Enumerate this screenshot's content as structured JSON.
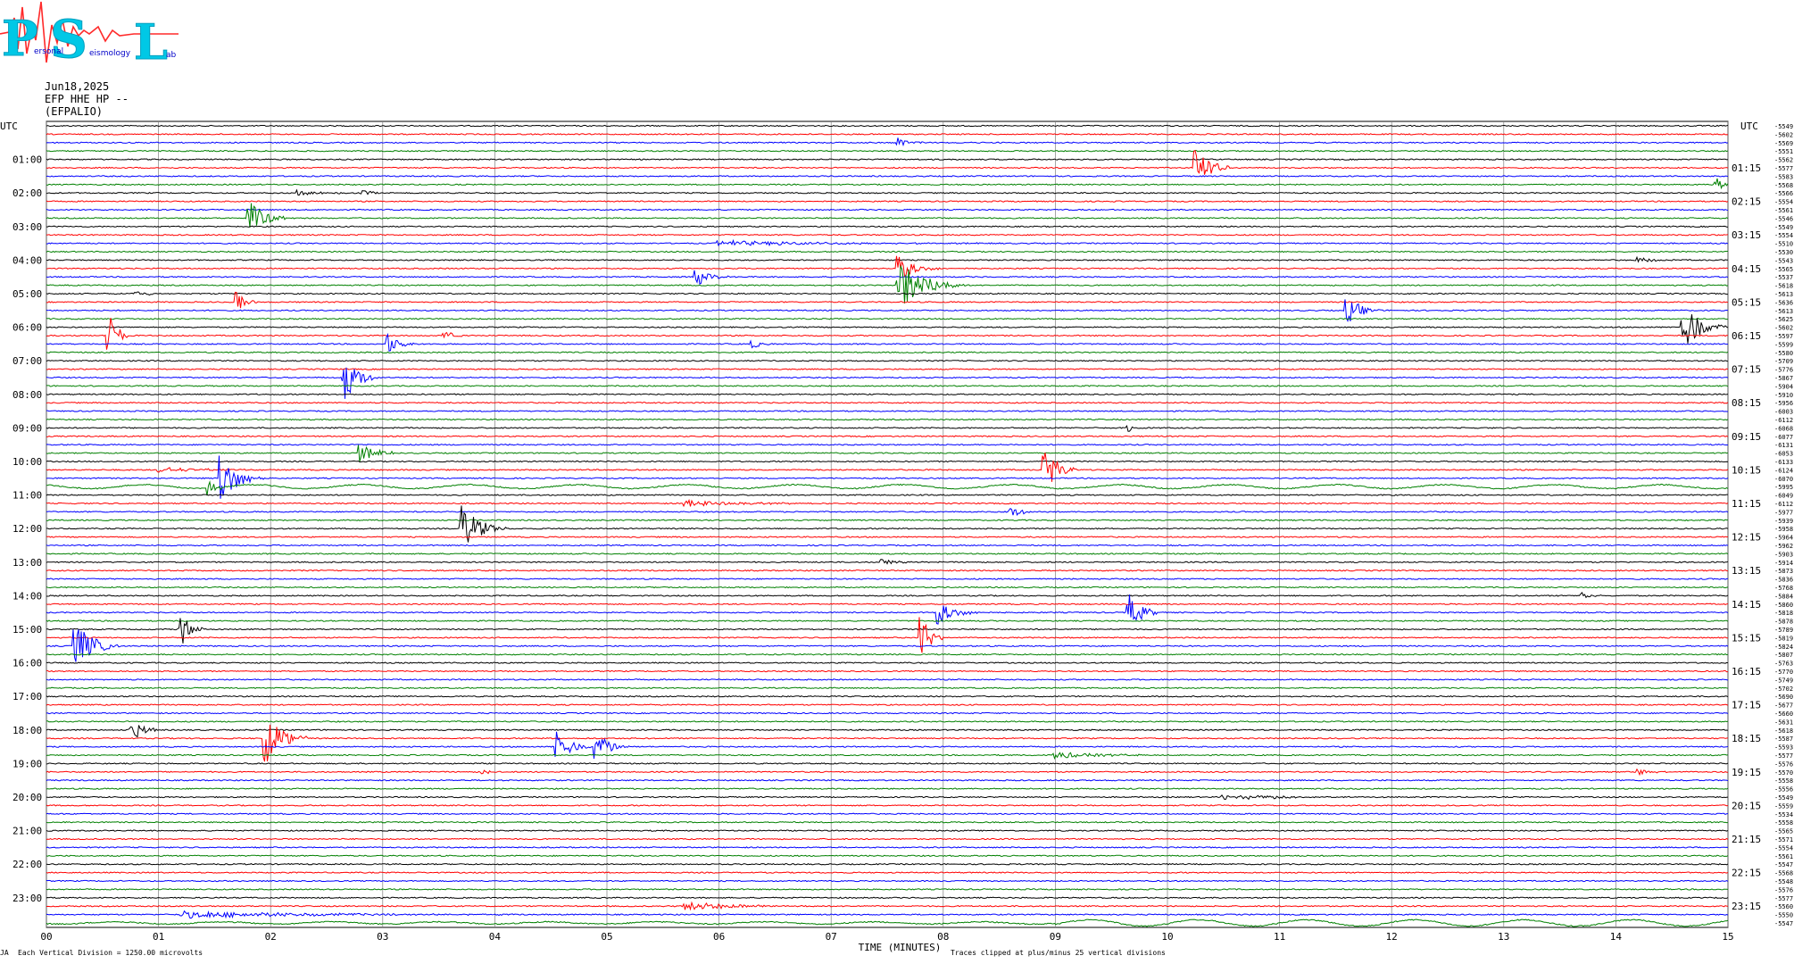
{
  "logo": {
    "letters": [
      "P",
      "S",
      "L"
    ],
    "words": [
      "ersonal",
      "eismology",
      "ab"
    ],
    "colors": {
      "letters": "#00c8e6",
      "trace": "#ff2a2a",
      "words": "#0000c8"
    }
  },
  "header": {
    "date": "Jun18,2025",
    "station": "EFP HHE HP --",
    "location": "(EFPALIO)"
  },
  "axes": {
    "left_label": "UTC",
    "right_label": "UTC",
    "xlabel": "TIME (MINUTES)",
    "x_ticks": [
      "00",
      "01",
      "02",
      "03",
      "04",
      "05",
      "06",
      "07",
      "08",
      "09",
      "10",
      "11",
      "12",
      "13",
      "14",
      "15"
    ],
    "xlim": [
      0,
      15
    ],
    "left_hour_labels": [
      "01:00",
      "02:00",
      "03:00",
      "04:00",
      "05:00",
      "06:00",
      "07:00",
      "08:00",
      "09:00",
      "10:00",
      "11:00",
      "12:00",
      "13:00",
      "14:00",
      "15:00",
      "16:00",
      "17:00",
      "18:00",
      "19:00",
      "20:00",
      "21:00",
      "22:00",
      "23:00"
    ],
    "right_hour_labels": [
      "01:15",
      "02:15",
      "03:15",
      "04:15",
      "05:15",
      "06:15",
      "07:15",
      "08:15",
      "09:15",
      "10:15",
      "11:15",
      "12:15",
      "13:15",
      "14:15",
      "15:15",
      "16:15",
      "17:15",
      "18:15",
      "19:15",
      "20:15",
      "21:15",
      "22:15",
      "23:15"
    ]
  },
  "footer": {
    "left_mark": "JA",
    "scale_note": "Each Vertical Division = 1250.00 microvolts",
    "clip_note": "Traces clipped at plus/minus 25 vertical divisions"
  },
  "colors": {
    "trace_cycle": [
      "#000000",
      "#ff0000",
      "#0000ff",
      "#008000"
    ],
    "grid": "#808080"
  },
  "chart_data": {
    "type": "line",
    "description_units": "helicorder, 96 traces of 15 minutes each",
    "trace_count": 96,
    "minutes_per_line": 15,
    "grid": true,
    "offsets": [
      -5549,
      -5602,
      -5569,
      -5551,
      -5562,
      -5577,
      -5583,
      -5568,
      -5566,
      -5554,
      -5561,
      -5546,
      -5549,
      -5554,
      -5510,
      -5530,
      -5543,
      -5565,
      -5537,
      -5618,
      -5613,
      -5636,
      -5613,
      -5625,
      -5602,
      -5597,
      -5599,
      -5580,
      -5709,
      -5776,
      -5867,
      -5904,
      -5910,
      -5956,
      -6003,
      -6112,
      -6068,
      -6077,
      -6131,
      -6053,
      -6133,
      -6124,
      -6070,
      -5995,
      -6049,
      -6112,
      -5977,
      -5939,
      -5958,
      -5964,
      -5962,
      -5903,
      -5914,
      -5873,
      -5836,
      -5768,
      -5884,
      -5860,
      -5818,
      -5878,
      -5789,
      -5819,
      -5824,
      -5807,
      -5763,
      -5770,
      -5749,
      -5702,
      -5690,
      -5677,
      -5660,
      -5631,
      -5618,
      -5587,
      -5593,
      -5577,
      -5576,
      -5570,
      -5558,
      -5556,
      -5549,
      -5559,
      -5534,
      -5558,
      -5565,
      -5571,
      -5554,
      -5561,
      -5547,
      -5568,
      -5548,
      -5576,
      -5577,
      -5560,
      -5550,
      -5547
    ],
    "events": [
      {
        "line": 2,
        "minute": 7.6,
        "amp": 6,
        "dur": 0.25
      },
      {
        "line": 5,
        "minute": 10.25,
        "amp": 30,
        "dur": 0.3
      },
      {
        "line": 7,
        "minute": 14.9,
        "amp": 8,
        "dur": 0.2
      },
      {
        "line": 8,
        "minute": 2.25,
        "amp": 3,
        "dur": 0.5
      },
      {
        "line": 8,
        "minute": 2.8,
        "amp": 3,
        "dur": 0.4
      },
      {
        "line": 11,
        "minute": 1.8,
        "amp": 22,
        "dur": 0.35
      },
      {
        "line": 14,
        "minute": 6.0,
        "amp": 3,
        "dur": 2.5
      },
      {
        "line": 17,
        "minute": 7.6,
        "amp": 14,
        "dur": 0.4
      },
      {
        "line": 16,
        "minute": 14.2,
        "amp": 4,
        "dur": 0.3
      },
      {
        "line": 18,
        "minute": 5.8,
        "amp": 10,
        "dur": 0.3
      },
      {
        "line": 19,
        "minute": 7.6,
        "amp": 30,
        "dur": 0.6
      },
      {
        "line": 20,
        "minute": 0.8,
        "amp": 3,
        "dur": 0.4
      },
      {
        "line": 21,
        "minute": 1.7,
        "amp": 12,
        "dur": 0.2
      },
      {
        "line": 22,
        "minute": 11.6,
        "amp": 18,
        "dur": 0.3
      },
      {
        "line": 24,
        "minute": 14.6,
        "amp": 28,
        "dur": 0.4
      },
      {
        "line": 25,
        "minute": 0.55,
        "amp": 30,
        "dur": 0.2
      },
      {
        "line": 25,
        "minute": 3.55,
        "amp": 5,
        "dur": 0.3
      },
      {
        "line": 26,
        "minute": 6.3,
        "amp": 5,
        "dur": 0.2
      },
      {
        "line": 26,
        "minute": 3.05,
        "amp": 12,
        "dur": 0.25
      },
      {
        "line": 30,
        "minute": 2.65,
        "amp": 30,
        "dur": 0.3
      },
      {
        "line": 36,
        "minute": 9.65,
        "amp": 4,
        "dur": 0.15
      },
      {
        "line": 39,
        "minute": 2.8,
        "amp": 10,
        "dur": 0.4
      },
      {
        "line": 41,
        "minute": 1.0,
        "amp": 3,
        "dur": 1.0
      },
      {
        "line": 41,
        "minute": 8.9,
        "amp": 28,
        "dur": 0.3
      },
      {
        "line": 42,
        "minute": 1.55,
        "amp": 30,
        "dur": 0.4
      },
      {
        "line": 43,
        "minute": 1.45,
        "amp": 10,
        "dur": 0.2
      },
      {
        "line": 45,
        "minute": 5.7,
        "amp": 4,
        "dur": 1.2
      },
      {
        "line": 46,
        "minute": 8.6,
        "amp": 5,
        "dur": 0.4
      },
      {
        "line": 48,
        "minute": 3.7,
        "amp": 30,
        "dur": 0.4
      },
      {
        "line": 52,
        "minute": 7.45,
        "amp": 5,
        "dur": 0.3
      },
      {
        "line": 56,
        "minute": 13.7,
        "amp": 8,
        "dur": 0.2
      },
      {
        "line": 58,
        "minute": 7.95,
        "amp": 14,
        "dur": 0.4
      },
      {
        "line": 58,
        "minute": 9.65,
        "amp": 22,
        "dur": 0.3
      },
      {
        "line": 60,
        "minute": 1.2,
        "amp": 22,
        "dur": 0.2
      },
      {
        "line": 61,
        "minute": 7.8,
        "amp": 30,
        "dur": 0.2
      },
      {
        "line": 62,
        "minute": 0.25,
        "amp": 30,
        "dur": 0.4
      },
      {
        "line": 72,
        "minute": 0.75,
        "amp": 14,
        "dur": 0.3
      },
      {
        "line": 73,
        "minute": 1.95,
        "amp": 30,
        "dur": 0.4
      },
      {
        "line": 74,
        "minute": 4.55,
        "amp": 22,
        "dur": 0.3
      },
      {
        "line": 74,
        "minute": 4.9,
        "amp": 18,
        "dur": 0.3
      },
      {
        "line": 75,
        "minute": 9.0,
        "amp": 4,
        "dur": 1.0
      },
      {
        "line": 77,
        "minute": 3.9,
        "amp": 3,
        "dur": 0.2
      },
      {
        "line": 77,
        "minute": 14.2,
        "amp": 4,
        "dur": 0.3
      },
      {
        "line": 80,
        "minute": 10.5,
        "amp": 3,
        "dur": 1.6
      },
      {
        "line": 94,
        "minute": 1.2,
        "amp": 4,
        "dur": 3.0
      },
      {
        "line": 93,
        "minute": 5.7,
        "amp": 5,
        "dur": 1.2
      }
    ]
  }
}
